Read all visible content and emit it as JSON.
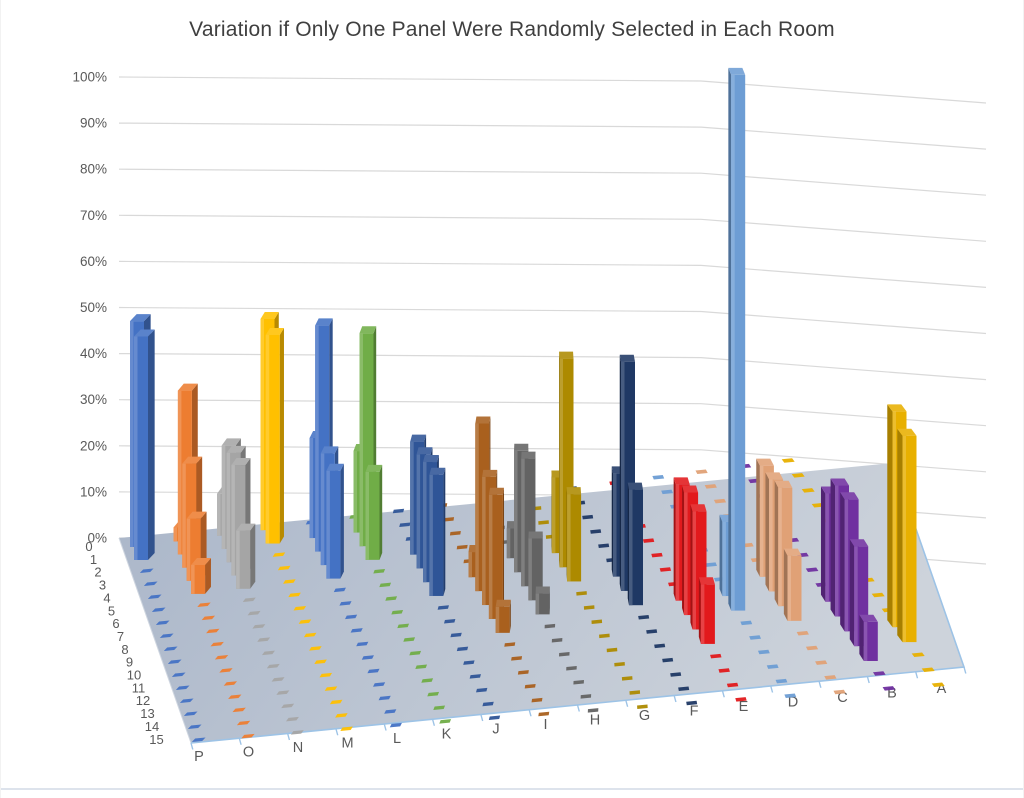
{
  "title": "Variation if Only One Panel Were Randomly Selected in Each Room",
  "chart_data": {
    "type": "bar",
    "subtype": "3d-column",
    "title": "Variation if Only One Panel Were Randomly Selected in Each Room",
    "value_axis": {
      "min": 0,
      "max": 100,
      "step": 10,
      "tick_labels": [
        "0%",
        "10%",
        "20%",
        "30%",
        "40%",
        "50%",
        "60%",
        "70%",
        "80%",
        "90%",
        "100%"
      ]
    },
    "depth_axis": {
      "labels": [
        "0",
        "1",
        "2",
        "3",
        "4",
        "5",
        "6",
        "7",
        "8",
        "9",
        "10",
        "11",
        "12",
        "13",
        "14",
        "15"
      ]
    },
    "category_axis": {
      "labels": [
        "P",
        "O",
        "N",
        "M",
        "L",
        "K",
        "J",
        "I",
        "H",
        "G",
        "F",
        "E",
        "D",
        "C",
        "B",
        "A"
      ]
    },
    "grid": true,
    "legend": false,
    "text_color": "#595959",
    "title_color": "#3f3f3f",
    "gridline_color": "#d9d9d9",
    "floor_color_left": "#aab6c9",
    "floor_color_right": "#cdd3db",
    "axis_line_color": "#9dc3e6",
    "series": [
      {
        "name": "P",
        "color": "#4472C4",
        "values": [
          49,
          48,
          0,
          0,
          0,
          0,
          0,
          0,
          0,
          0,
          0,
          0,
          0,
          0,
          0,
          0
        ]
      },
      {
        "name": "O",
        "color": "#ED7D31",
        "values": [
          3,
          35,
          22,
          13,
          6,
          0,
          0,
          0,
          0,
          0,
          0,
          0,
          0,
          0,
          0,
          0
        ]
      },
      {
        "name": "N",
        "color": "#A5A5A5",
        "values": [
          9,
          22,
          23,
          23,
          12,
          0,
          0,
          0,
          0,
          0,
          0,
          0,
          0,
          0,
          0,
          0
        ]
      },
      {
        "name": "M",
        "color": "#FFC000",
        "values": [
          45,
          44,
          0,
          0,
          0,
          0,
          0,
          0,
          0,
          0,
          0,
          0,
          0,
          0,
          0,
          0
        ]
      },
      {
        "name": "L",
        "color": "#4472C4",
        "values": [
          0,
          21,
          47,
          23,
          22,
          0,
          0,
          0,
          0,
          0,
          0,
          0,
          0,
          0,
          0,
          0
        ]
      },
      {
        "name": "K",
        "color": "#70AD47",
        "values": [
          0,
          17,
          44,
          18,
          0,
          0,
          0,
          0,
          0,
          0,
          0,
          0,
          0,
          0,
          0,
          0
        ]
      },
      {
        "name": "J",
        "color": "#2F5597",
        "values": [
          0,
          0,
          0,
          23,
          23,
          24,
          24,
          0,
          0,
          0,
          0,
          0,
          0,
          0,
          0,
          0
        ]
      },
      {
        "name": "I",
        "color": "#A9601E",
        "values": [
          0,
          0,
          0,
          0,
          0,
          5,
          33,
          25,
          24,
          5,
          0,
          0,
          0,
          0,
          0,
          0
        ]
      },
      {
        "name": "H",
        "color": "#636363",
        "values": [
          0,
          0,
          0,
          0,
          6,
          24,
          25,
          12,
          4,
          0,
          0,
          0,
          0,
          0,
          0,
          0
        ]
      },
      {
        "name": "G",
        "color": "#AD8A00",
        "values": [
          0,
          0,
          0,
          0,
          15,
          41,
          17,
          0,
          0,
          0,
          0,
          0,
          0,
          0,
          0,
          0
        ]
      },
      {
        "name": "F",
        "color": "#1F3864",
        "values": [
          0,
          0,
          0,
          0,
          0,
          0,
          20,
          44,
          22,
          0,
          0,
          0,
          0,
          0,
          0,
          0
        ]
      },
      {
        "name": "E",
        "color": "#E2191C",
        "values": [
          0,
          0,
          0,
          0,
          0,
          0,
          0,
          0,
          22,
          23,
          22,
          11,
          0,
          0,
          0,
          0
        ]
      },
      {
        "name": "D",
        "color": "#6D9DD4",
        "values": [
          0,
          0,
          0,
          0,
          0,
          0,
          0,
          0,
          14,
          100,
          0,
          0,
          0,
          0,
          0,
          0
        ]
      },
      {
        "name": "C",
        "color": "#E0A176",
        "values": [
          0,
          0,
          0,
          0,
          0,
          0,
          0,
          21,
          21,
          22,
          12,
          0,
          0,
          0,
          0,
          0
        ]
      },
      {
        "name": "B",
        "color": "#7030A0",
        "values": [
          0,
          0,
          0,
          0,
          0,
          0,
          0,
          0,
          0,
          20,
          24,
          24,
          18,
          7,
          0,
          0
        ]
      },
      {
        "name": "A",
        "color": "#E8B000",
        "values": [
          0,
          0,
          0,
          0,
          0,
          0,
          0,
          0,
          0,
          0,
          0,
          39,
          37,
          0,
          0,
          0
        ]
      }
    ]
  }
}
